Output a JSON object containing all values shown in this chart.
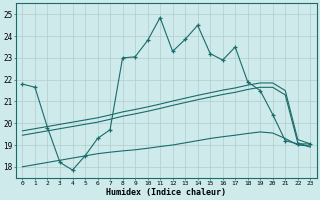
{
  "title": "",
  "xlabel": "Humidex (Indice chaleur)",
  "ylabel": "",
  "bg_color": "#ceeaea",
  "grid_color": "#b8d8d8",
  "line_color": "#1a6b6b",
  "xlim": [
    -0.5,
    23.5
  ],
  "ylim": [
    17.5,
    25.5
  ],
  "xticks": [
    0,
    1,
    2,
    3,
    4,
    5,
    6,
    7,
    8,
    9,
    10,
    11,
    12,
    13,
    14,
    15,
    16,
    17,
    18,
    19,
    20,
    21,
    22,
    23
  ],
  "yticks": [
    18,
    19,
    20,
    21,
    22,
    23,
    24,
    25
  ],
  "main_line": {
    "x": [
      0,
      1,
      2,
      3,
      4,
      5,
      6,
      7,
      8,
      9,
      10,
      11,
      12,
      13,
      14,
      15,
      16,
      17,
      18,
      19,
      20,
      21,
      22,
      23
    ],
    "y": [
      21.8,
      21.65,
      19.8,
      18.2,
      17.85,
      18.5,
      19.3,
      19.7,
      23.0,
      23.05,
      23.8,
      24.85,
      23.3,
      23.85,
      24.5,
      23.2,
      22.9,
      23.5,
      21.9,
      21.5,
      20.4,
      19.2,
      19.05,
      19.05
    ]
  },
  "upper_line": {
    "x": [
      0,
      1,
      2,
      3,
      4,
      5,
      6,
      7,
      8,
      9,
      10,
      11,
      12,
      13,
      14,
      15,
      16,
      17,
      18,
      19,
      20,
      21,
      22,
      23
    ],
    "y": [
      19.65,
      19.75,
      19.85,
      19.95,
      20.05,
      20.15,
      20.25,
      20.38,
      20.52,
      20.63,
      20.75,
      20.88,
      21.02,
      21.15,
      21.28,
      21.4,
      21.52,
      21.62,
      21.75,
      21.85,
      21.85,
      21.5,
      19.25,
      19.05
    ]
  },
  "middle_line": {
    "x": [
      0,
      1,
      2,
      3,
      4,
      5,
      6,
      7,
      8,
      9,
      10,
      11,
      12,
      13,
      14,
      15,
      16,
      17,
      18,
      19,
      20,
      21,
      22,
      23
    ],
    "y": [
      19.45,
      19.55,
      19.65,
      19.75,
      19.85,
      19.95,
      20.05,
      20.18,
      20.32,
      20.43,
      20.55,
      20.68,
      20.82,
      20.95,
      21.08,
      21.2,
      21.32,
      21.42,
      21.55,
      21.65,
      21.65,
      21.3,
      19.1,
      18.9
    ]
  },
  "lower_line": {
    "x": [
      0,
      1,
      2,
      3,
      4,
      5,
      6,
      7,
      8,
      9,
      10,
      11,
      12,
      13,
      14,
      15,
      16,
      17,
      18,
      19,
      20,
      21,
      22,
      23
    ],
    "y": [
      18.0,
      18.1,
      18.2,
      18.3,
      18.4,
      18.5,
      18.6,
      18.67,
      18.73,
      18.78,
      18.85,
      18.93,
      19.0,
      19.1,
      19.2,
      19.3,
      19.38,
      19.45,
      19.53,
      19.6,
      19.55,
      19.3,
      19.0,
      18.95
    ]
  }
}
